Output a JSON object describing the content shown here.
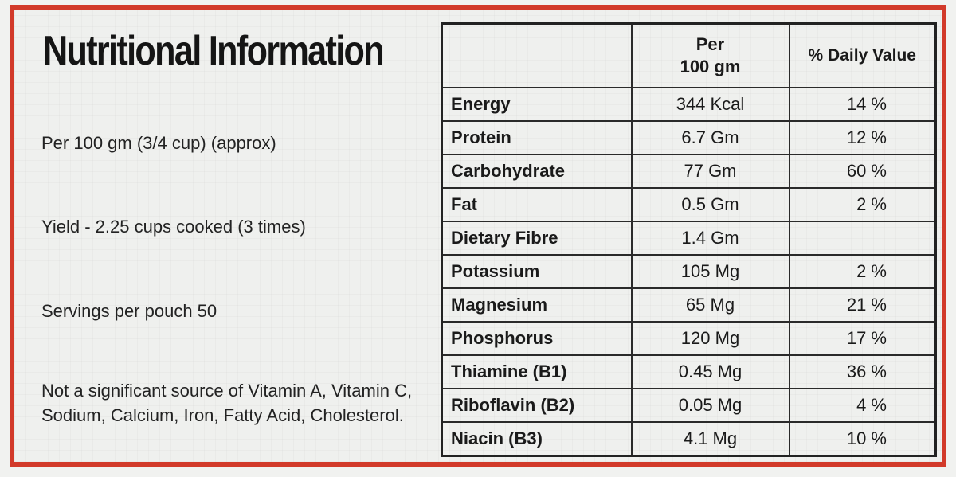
{
  "title": "Nutritional Information",
  "info": {
    "per_serving": "Per 100 gm (3/4 cup) (approx)",
    "yield": "Yield - 2.25 cups cooked (3 times)",
    "servings": "Servings per pouch 50",
    "not_significant": "Not a significant source of Vitamin A, Vitamin C, Sodium, Calcium, Iron, Fatty Acid, Cholesterol."
  },
  "table": {
    "headers": {
      "nutrient": "",
      "per_100_line1": "Per",
      "per_100_line2": "100 gm",
      "daily_value": "% Daily Value"
    },
    "rows": [
      {
        "nutrient": "Energy",
        "amount": "344 Kcal",
        "dv": "14 %"
      },
      {
        "nutrient": "Protein",
        "amount": "6.7 Gm",
        "dv": "12 %"
      },
      {
        "nutrient": "Carbohydrate",
        "amount": "77 Gm",
        "dv": "60 %"
      },
      {
        "nutrient": "Fat",
        "amount": "0.5 Gm",
        "dv": "2 %"
      },
      {
        "nutrient": "Dietary Fibre",
        "amount": "1.4 Gm",
        "dv": ""
      },
      {
        "nutrient": "Potassium",
        "amount": "105 Mg",
        "dv": "2 %"
      },
      {
        "nutrient": "Magnesium",
        "amount": "65 Mg",
        "dv": "21 %"
      },
      {
        "nutrient": "Phosphorus",
        "amount": "120 Mg",
        "dv": "17 %"
      },
      {
        "nutrient": "Thiamine (B1)",
        "amount": "0.45 Mg",
        "dv": "36 %"
      },
      {
        "nutrient": "Riboflavin (B2)",
        "amount": "0.05 Mg",
        "dv": "4 %"
      },
      {
        "nutrient": "Niacin (B3)",
        "amount": "4.1 Mg",
        "dv": "10 %"
      }
    ]
  },
  "colors": {
    "border": "#d23a2a",
    "background": "#eff0ee",
    "text": "#1a1a1a"
  }
}
